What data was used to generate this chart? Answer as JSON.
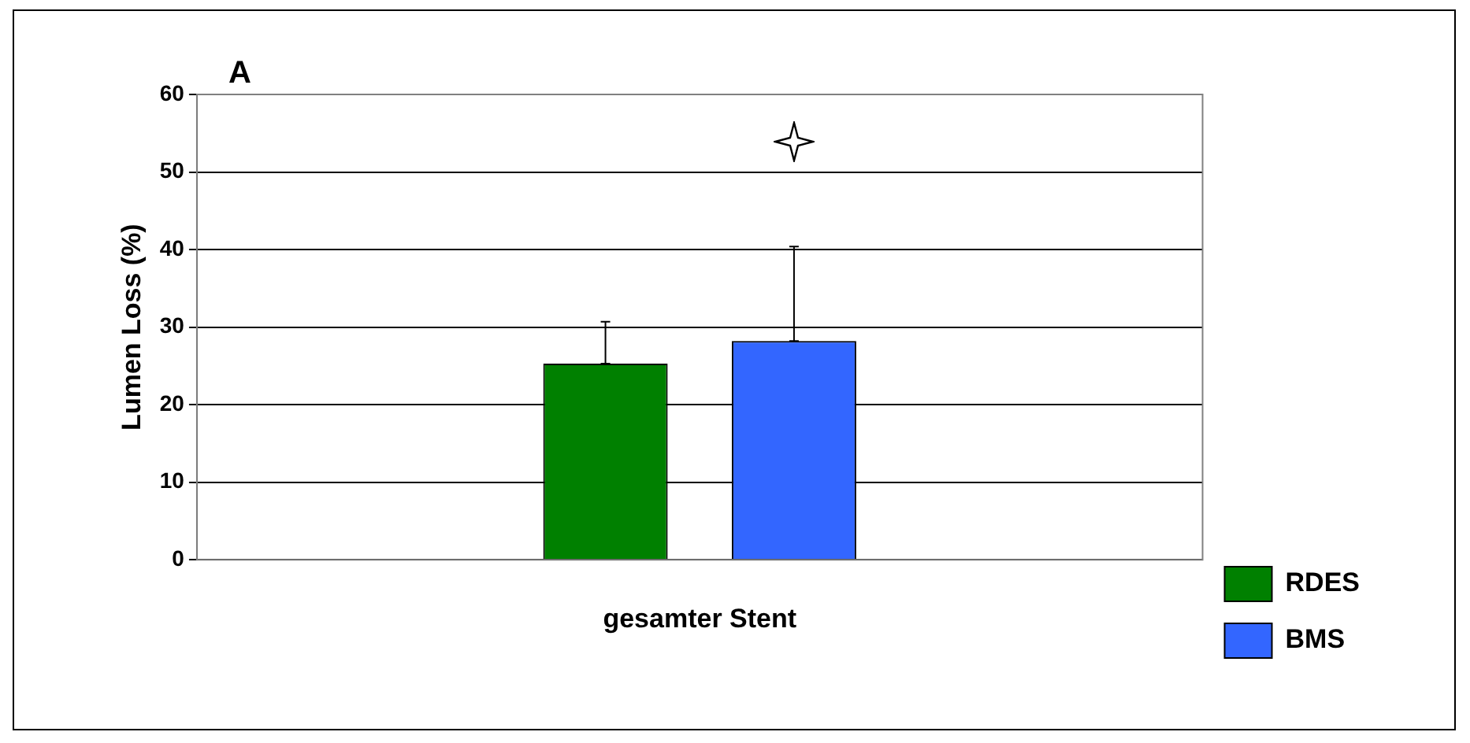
{
  "chart_data": {
    "type": "bar",
    "title": "A",
    "ylabel": "Lumen Loss (%)",
    "categories": [
      "gesamter Stent"
    ],
    "series": [
      {
        "name": "RDES",
        "color": "#008000",
        "values": [
          25.3
        ],
        "errors": [
          [
            25.3,
            30.7
          ]
        ]
      },
      {
        "name": "BMS",
        "color": "#3366ff",
        "values": [
          28.2
        ],
        "errors": [
          [
            28.2,
            40.4
          ]
        ]
      }
    ],
    "ylim": [
      0,
      60
    ],
    "yticks": [
      0,
      10,
      20,
      30,
      40,
      50,
      60
    ],
    "grid": "y",
    "legend": "right"
  }
}
